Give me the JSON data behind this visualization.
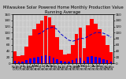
{
  "title": "Milwaukee Solar Powered Home Monthly Production Value Running Average",
  "months": [
    "Nov\n'07",
    "Dec\n'07",
    "Jan\n'08",
    "Feb\n'08",
    "Mar\n'08",
    "Apr\n'08",
    "May\n'08",
    "Jun\n'08",
    "Jul\n'08",
    "Aug\n'08",
    "Sep\n'08",
    "Oct\n'08",
    "Nov\n'08",
    "Dec\n'08",
    "Jan\n'09",
    "Feb\n'09",
    "Mar\n'09",
    "Apr\n'09",
    "May\n'09",
    "Jun\n'09",
    "Jul\n'09",
    "Aug\n'09",
    "Sep\n'09",
    "Oct\n'09",
    "Nov\n'09",
    "Dec\n'09"
  ],
  "bar_values": [
    38,
    22,
    25,
    55,
    90,
    110,
    130,
    140,
    155,
    150,
    125,
    85,
    45,
    28,
    30,
    60,
    95,
    115,
    50,
    125,
    145,
    130,
    110,
    90,
    60,
    35
  ],
  "small_bars": [
    8,
    5,
    6,
    10,
    15,
    18,
    20,
    22,
    25,
    22,
    18,
    12,
    8,
    5,
    6,
    11,
    16,
    19,
    9,
    20,
    23,
    21,
    18,
    14,
    10,
    6
  ],
  "running_avg": [
    null,
    null,
    null,
    null,
    null,
    null,
    95,
    100,
    110,
    115,
    118,
    110,
    95,
    85,
    75,
    72,
    75,
    82,
    80,
    88,
    95,
    100,
    100,
    98,
    92,
    85
  ],
  "bar_color": "#ff0000",
  "small_bar_color": "#0000ff",
  "avg_line_color": "#0000cc",
  "bg_color": "#c0c0c0",
  "plot_bg": "#c8c8c8",
  "ylim": [
    0,
    160
  ],
  "yticks": [
    0,
    20,
    40,
    60,
    80,
    100,
    120,
    140,
    160
  ],
  "title_fontsize": 3.8,
  "tick_fontsize": 3.0
}
